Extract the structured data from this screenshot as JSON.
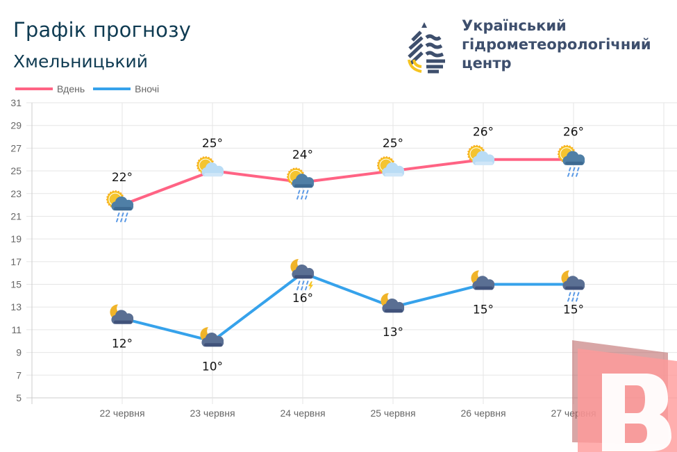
{
  "header": {
    "title": "Графік прогнозу",
    "city": "Хмельницький",
    "org_lines": [
      "Український",
      "гідрометеорологічний",
      "центр"
    ]
  },
  "legend": [
    {
      "label": "Вдень",
      "color": "#ff6384"
    },
    {
      "label": "Вночі",
      "color": "#36a2eb"
    }
  ],
  "watermark": {
    "letter": "B",
    "color": "#ff9a9a"
  },
  "chart_data": {
    "type": "line",
    "categories": [
      "22 червня",
      "23 червня",
      "24 червня",
      "25 червня",
      "26 червня",
      "27 червня"
    ],
    "ylim": [
      5,
      31
    ],
    "yticks": [
      5,
      7,
      9,
      11,
      13,
      15,
      17,
      19,
      21,
      23,
      25,
      27,
      29,
      31
    ],
    "grid": true,
    "legend_position": "top-left",
    "series": [
      {
        "name": "Вдень",
        "color": "#ff6384",
        "values": [
          22,
          25,
          24,
          25,
          26,
          26
        ],
        "labels": [
          "22°",
          "25°",
          "24°",
          "25°",
          "26°",
          "26°"
        ],
        "icons": [
          "sun-cloud-rain",
          "sun-cloud",
          "sun-cloud-rain",
          "sun-cloud",
          "sun-cloud",
          "sun-cloud-rain"
        ]
      },
      {
        "name": "Вночі",
        "color": "#36a2eb",
        "values": [
          12,
          10,
          16,
          13,
          15,
          15
        ],
        "labels": [
          "12°",
          "10°",
          "16°",
          "13°",
          "15°",
          "15°"
        ],
        "icons": [
          "moon-cloud",
          "moon-cloud",
          "moon-cloud-rain-thunder",
          "moon-cloud",
          "moon-cloud",
          "moon-cloud-rain"
        ]
      }
    ]
  }
}
